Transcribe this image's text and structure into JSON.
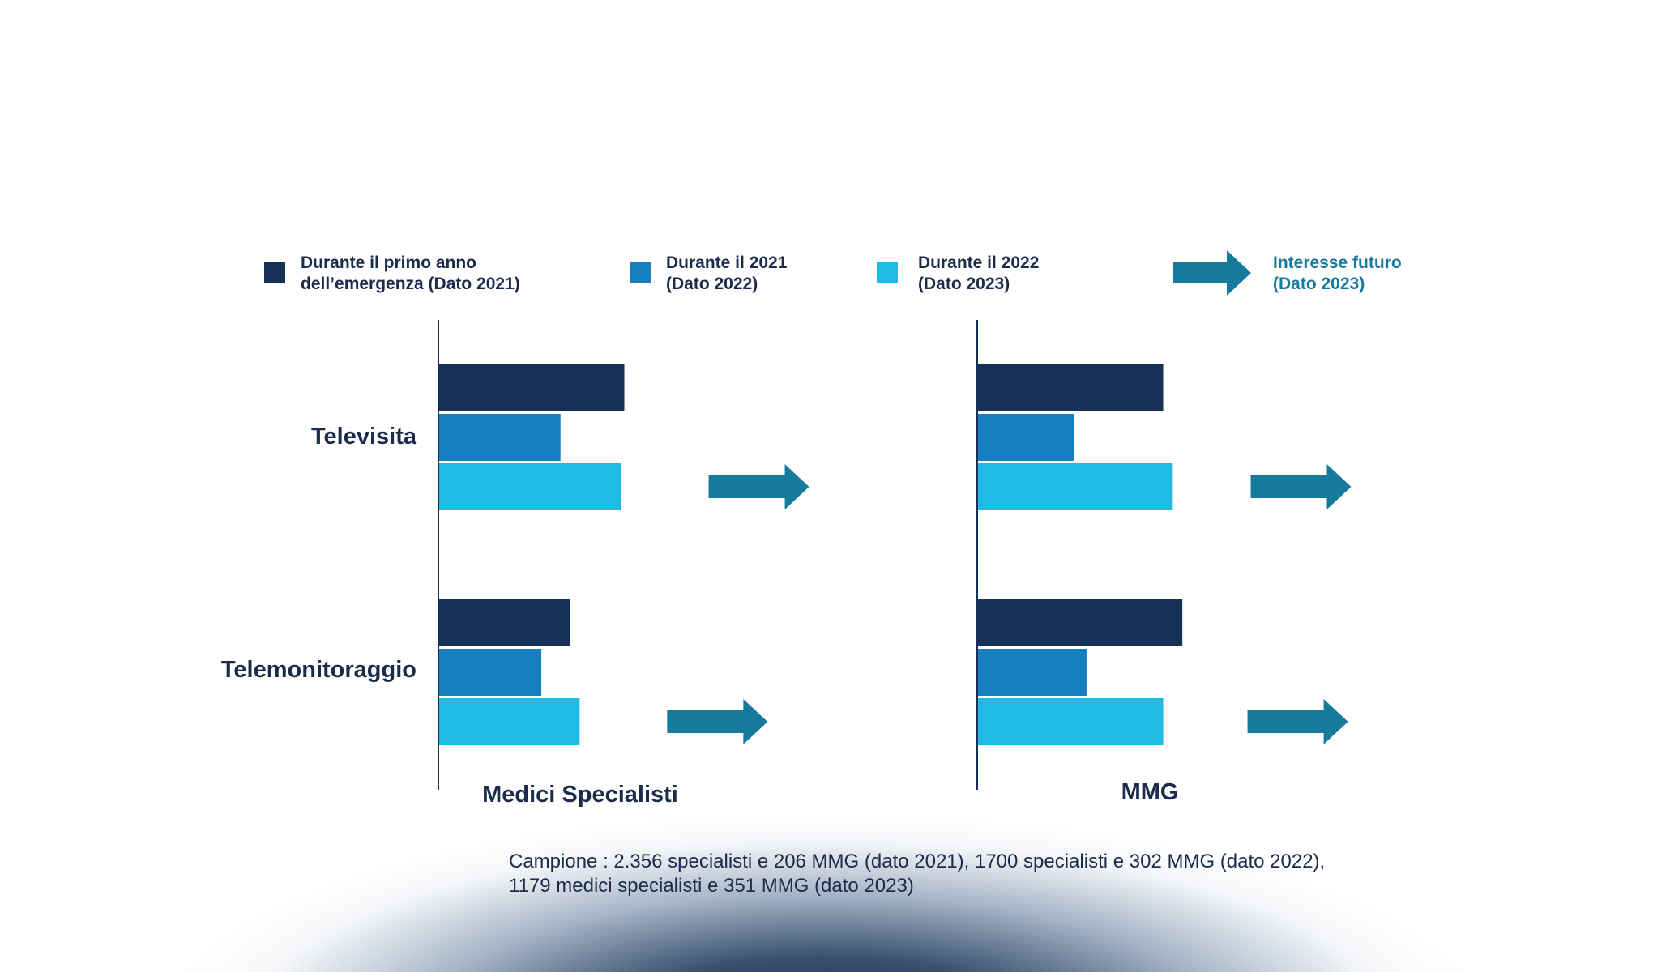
{
  "colors": {
    "series_2021": "#163155",
    "series_2022": "#167fc2",
    "series_2023": "#1fbbe5",
    "future_arrow": "#157a9c",
    "text_dark": "#1b2b4a",
    "legend_future_text": "#157a9c"
  },
  "legend": [
    {
      "line1": "Durante il primo anno",
      "line2": "dell’emergenza (Dato 2021)",
      "swatch": "series_2021"
    },
    {
      "line1": "Durante il 2021",
      "line2": "(Dato 2022)",
      "swatch": "series_2022"
    },
    {
      "line1": "Durante il 2022",
      "line2": "(Dato 2023)",
      "swatch": "series_2023"
    },
    {
      "line1": "Interesse futuro",
      "line2": "(Dato 2023)",
      "swatch": "future-arrow-icon"
    }
  ],
  "chart_data": {
    "type": "bar",
    "orientation": "horizontal",
    "grid": false,
    "value_axis": "unlabeled, relative scale",
    "categories": [
      "Televisita",
      "Telemonitoraggio"
    ],
    "series": [
      {
        "name": "Durante il primo anno dell’emergenza (Dato 2021)",
        "color": "series_2021"
      },
      {
        "name": "Durante il 2021 (Dato 2022)",
        "color": "series_2022"
      },
      {
        "name": "Durante il 2022 (Dato 2023)",
        "color": "series_2023"
      },
      {
        "name": "Interesse futuro (Dato 2023)",
        "color": "future_arrow",
        "mark": "arrow"
      }
    ],
    "panels": [
      {
        "title": "Medici Specialisti",
        "values": {
          "Televisita": [
            58,
            38,
            57
          ],
          "Telemonitoraggio": [
            41,
            32,
            44
          ]
        },
        "future_interest": {
          "Televisita": 74,
          "Telemonitoraggio": 61
        }
      },
      {
        "title": "MMG",
        "values": {
          "Televisita": [
            58,
            30,
            61
          ],
          "Telemonitoraggio": [
            64,
            34,
            58
          ]
        },
        "future_interest": {
          "Televisita": 75,
          "Telemonitoraggio": 74
        }
      }
    ],
    "legend_position": "top"
  },
  "footnote": {
    "line1": "Campione : 2.356 specialisti e 206 MMG (dato 2021), 1700 specialisti e 302 MMG (dato 2022),",
    "line2": "1179 medici specialisti e 351 MMG (dato 2023)"
  }
}
